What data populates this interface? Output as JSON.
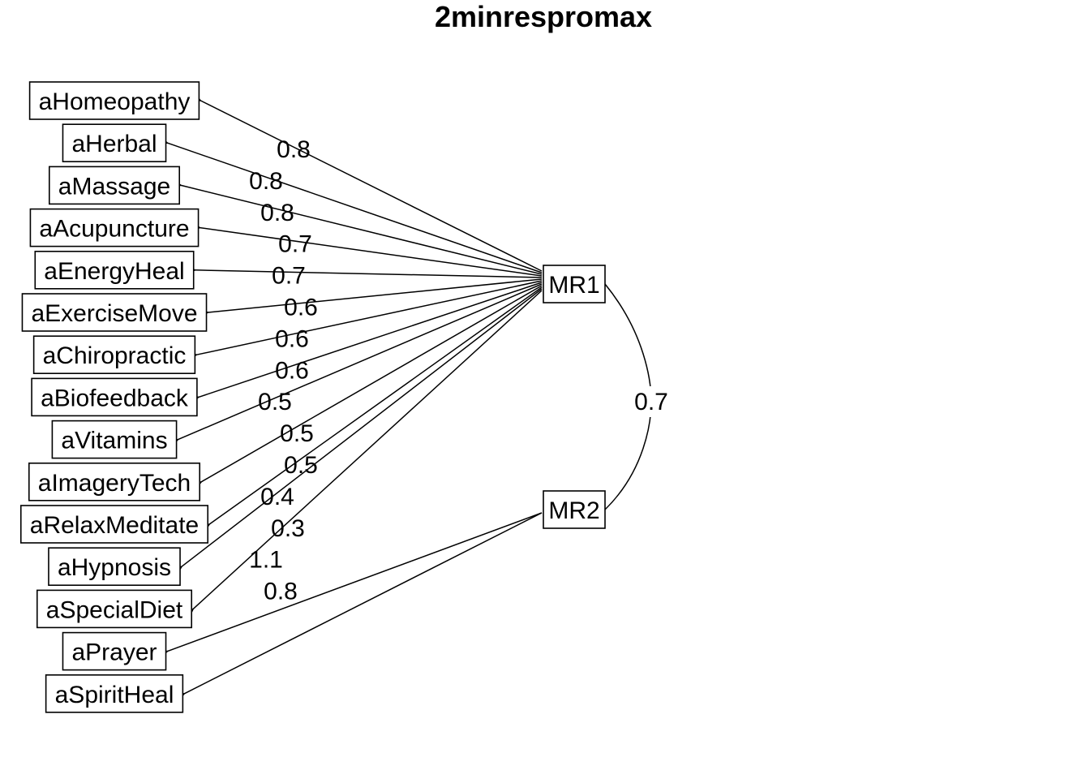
{
  "title": "2minrespromax",
  "factors": [
    {
      "name": "MR1"
    },
    {
      "name": "MR2"
    }
  ],
  "variables": [
    {
      "name": "aHomeopathy",
      "factor": 0,
      "loading": "0.8"
    },
    {
      "name": "aHerbal",
      "factor": 0,
      "loading": "0.8"
    },
    {
      "name": "aMassage",
      "factor": 0,
      "loading": "0.8"
    },
    {
      "name": "aAcupuncture",
      "factor": 0,
      "loading": "0.7"
    },
    {
      "name": "aEnergyHeal",
      "factor": 0,
      "loading": "0.7"
    },
    {
      "name": "aExerciseMove",
      "factor": 0,
      "loading": "0.6"
    },
    {
      "name": "aChiropractic",
      "factor": 0,
      "loading": "0.6"
    },
    {
      "name": "aBiofeedback",
      "factor": 0,
      "loading": "0.6"
    },
    {
      "name": "aVitamins",
      "factor": 0,
      "loading": "0.5"
    },
    {
      "name": "aImageryTech",
      "factor": 0,
      "loading": "0.5"
    },
    {
      "name": "aRelaxMeditate",
      "factor": 0,
      "loading": "0.5"
    },
    {
      "name": "aHypnosis",
      "factor": 0,
      "loading": "0.4"
    },
    {
      "name": "aSpecialDiet",
      "factor": 0,
      "loading": "0.3"
    },
    {
      "name": "aPrayer",
      "factor": 1,
      "loading": "1.1"
    },
    {
      "name": "aSpiritHeal",
      "factor": 1,
      "loading": "0.8"
    }
  ],
  "factor_correlation": "0.7"
}
